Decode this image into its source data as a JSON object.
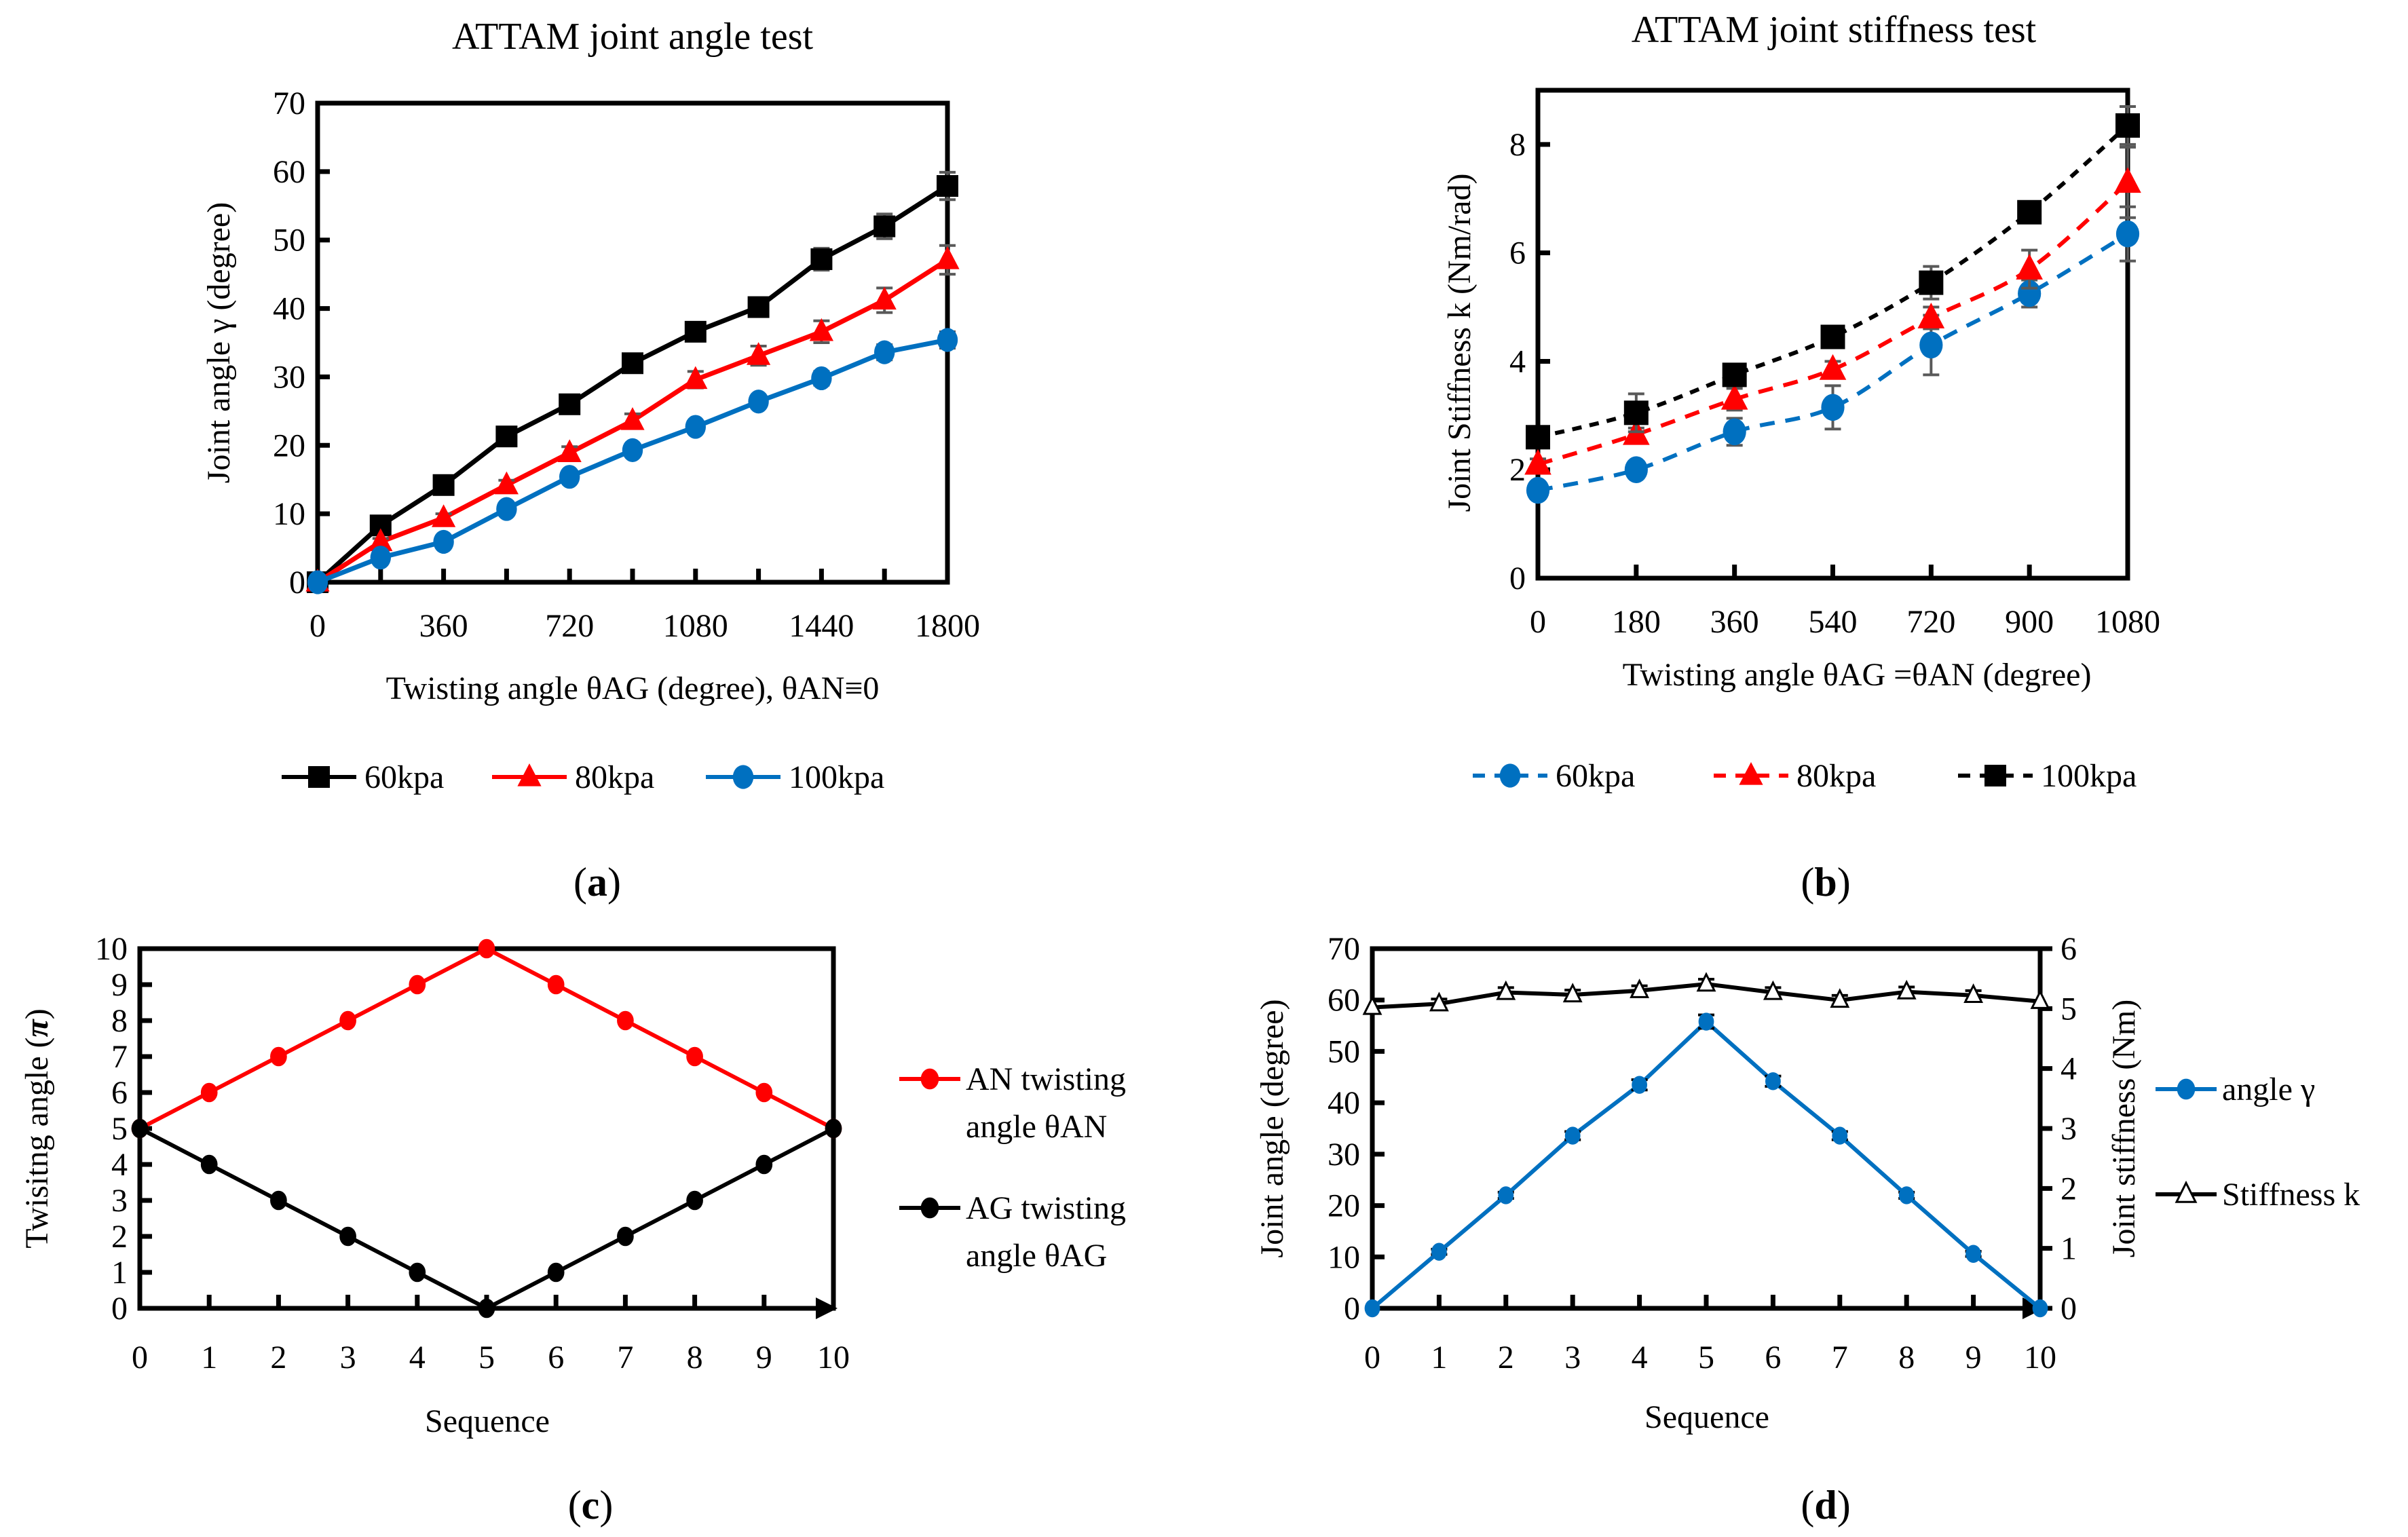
{
  "panels": [
    {
      "id": "a",
      "caption_open": "(",
      "caption_letter": "a",
      "caption_close": ")"
    },
    {
      "id": "b",
      "caption_open": "(",
      "caption_letter": "b",
      "caption_close": ")"
    },
    {
      "id": "c",
      "caption_open": "(",
      "caption_letter": "c",
      "caption_close": ")"
    },
    {
      "id": "d",
      "caption_open": "(",
      "caption_letter": "d",
      "caption_close": ")"
    }
  ],
  "colors": {
    "blue": "#0070C0",
    "red": "#FF0000",
    "black": "#000000",
    "errorbar": "#595959"
  },
  "chart_data": [
    {
      "id": "a",
      "type": "line",
      "title": "ATTAM joint angle test",
      "xlabel": "Twisting angle θAG (degree), θAN≡0",
      "ylabel": "Joint angle γ  (degree)",
      "x": [
        0,
        180,
        360,
        540,
        720,
        900,
        1080,
        1260,
        1440,
        1620,
        1800
      ],
      "xticks": [
        "0",
        "360",
        "720",
        "1080",
        "1440",
        "1800"
      ],
      "xtick_values": [
        0,
        360,
        720,
        1080,
        1440,
        1800
      ],
      "xlim": [
        0,
        1800
      ],
      "ylim": [
        0,
        70
      ],
      "yticks": [
        "0",
        "10",
        "20",
        "30",
        "40",
        "50",
        "60",
        "70"
      ],
      "legend_position": "bottom",
      "series": [
        {
          "name": "60kpa",
          "color": "#000000",
          "marker": "square",
          "dash": false,
          "values": [
            0,
            8.3,
            14.2,
            21.3,
            26.0,
            32.0,
            36.6,
            40.2,
            47.2,
            52.0,
            57.9
          ],
          "errors": [
            0,
            0.6,
            0.7,
            0.7,
            0.7,
            0.7,
            1.0,
            1.3,
            1.6,
            1.8,
            2.0
          ]
        },
        {
          "name": "80kpa",
          "color": "#FF0000",
          "marker": "triangle",
          "dash": false,
          "values": [
            0,
            5.9,
            9.4,
            14.2,
            18.9,
            23.6,
            29.6,
            33.1,
            36.6,
            41.2,
            47.1
          ],
          "errors": [
            0,
            0.5,
            0.6,
            0.7,
            0.9,
            1.0,
            1.2,
            1.4,
            1.6,
            1.8,
            2.1
          ]
        },
        {
          "name": "100kpa",
          "color": "#0070C0",
          "marker": "circle",
          "dash": false,
          "values": [
            0,
            3.6,
            5.9,
            10.7,
            15.4,
            19.3,
            22.7,
            26.4,
            29.8,
            33.6,
            35.4
          ],
          "errors": [
            0,
            0.4,
            0.5,
            0.6,
            0.7,
            0.7,
            0.8,
            0.8,
            1.0,
            1.1,
            1.2
          ]
        }
      ]
    },
    {
      "id": "b",
      "type": "line",
      "title": "ATTAM joint stiffness test",
      "xlabel": "Twisting angle θAG =θAN (degree)",
      "ylabel": "Joint Stiffness k (Nm/rad)",
      "x": [
        0,
        180,
        360,
        540,
        720,
        900,
        1080
      ],
      "xticks": [
        "0",
        "180",
        "360",
        "540",
        "720",
        "900",
        "1080"
      ],
      "xtick_values": [
        0,
        180,
        360,
        540,
        720,
        900,
        1080
      ],
      "xlim": [
        0,
        1080
      ],
      "ylim": [
        0,
        9
      ],
      "yticks": [
        "0",
        "2",
        "4",
        "6",
        "8"
      ],
      "ytick_values": [
        0,
        2,
        4,
        6,
        8
      ],
      "legend_position": "bottom",
      "series": [
        {
          "name": "60kpa",
          "color": "#0070C0",
          "marker": "circle",
          "dash": true,
          "values": [
            1.62,
            2.0,
            2.7,
            3.15,
            4.3,
            5.25,
            6.35
          ],
          "errors": [
            0.1,
            0.12,
            0.25,
            0.4,
            0.55,
            0.25,
            0.5
          ]
        },
        {
          "name": "80kpa",
          "color": "#FF0000",
          "marker": "triangle",
          "dash": true,
          "values": [
            2.1,
            2.65,
            3.3,
            3.85,
            4.8,
            5.7,
            7.3
          ],
          "errors": [
            0.1,
            0.12,
            0.2,
            0.15,
            0.2,
            0.35,
            0.65
          ]
        },
        {
          "name": "100kpa",
          "color": "#000000",
          "marker": "square",
          "dash": true,
          "values": [
            2.6,
            3.05,
            3.75,
            4.45,
            5.45,
            6.75,
            8.35
          ],
          "errors": [
            0.15,
            0.35,
            0.1,
            0.1,
            0.3,
            0.15,
            0.35
          ]
        }
      ]
    },
    {
      "id": "c",
      "type": "line",
      "title": "",
      "xlabel": "Sequence",
      "ylabel": "Twisitng angle (π)",
      "ylabel_main": "Twisitng angle (",
      "ylabel_pi": "π",
      "ylabel_close": ")",
      "x": [
        0,
        1,
        2,
        3,
        4,
        5,
        6,
        7,
        8,
        9,
        10
      ],
      "xticks": [
        "0",
        "1",
        "2",
        "3",
        "4",
        "5",
        "6",
        "7",
        "8",
        "9",
        "10"
      ],
      "xlim": [
        0,
        10
      ],
      "ylim": [
        0,
        10
      ],
      "yticks": [
        "0",
        "1",
        "2",
        "3",
        "4",
        "5",
        "6",
        "7",
        "8",
        "9",
        "10"
      ],
      "legend_position": "right",
      "series": [
        {
          "name": "AN twisting angle θAN",
          "legend_lines": [
            "AN twisting",
            "angle θAN"
          ],
          "color": "#FF0000",
          "marker": "circle",
          "values": [
            5,
            6,
            7,
            8,
            9,
            10,
            9,
            8,
            7,
            6,
            5
          ]
        },
        {
          "name": "AG twisting angle θAG",
          "legend_lines": [
            "AG twisting",
            "angle θAG"
          ],
          "color": "#000000",
          "marker": "circle",
          "values": [
            5,
            4,
            3,
            2,
            1,
            0,
            1,
            2,
            3,
            4,
            5
          ]
        }
      ]
    },
    {
      "id": "d",
      "type": "line",
      "title": "",
      "xlabel": "Sequence",
      "ylabel": "Joint angle (degree)",
      "y2label": "Joint stiffness (Nm)",
      "x": [
        0,
        1,
        2,
        3,
        4,
        5,
        6,
        7,
        8,
        9,
        10
      ],
      "xticks": [
        "0",
        "1",
        "2",
        "3",
        "4",
        "5",
        "6",
        "7",
        "8",
        "9",
        "10"
      ],
      "xlim": [
        0,
        10
      ],
      "ylim": [
        0,
        70
      ],
      "yticks": [
        "0",
        "10",
        "20",
        "30",
        "40",
        "50",
        "60",
        "70"
      ],
      "y2lim": [
        0,
        6
      ],
      "y2ticks": [
        "0",
        "1",
        "2",
        "3",
        "4",
        "5",
        "6"
      ],
      "legend_position": "right",
      "series": [
        {
          "name": "angle γ",
          "axis": "left",
          "color": "#0070C0",
          "marker": "circle",
          "values": [
            0,
            11.0,
            22.0,
            33.6,
            43.5,
            55.8,
            44.2,
            33.6,
            22.0,
            10.6,
            0
          ],
          "errors": [
            0,
            0.5,
            0.6,
            0.8,
            1.0,
            1.3,
            1.0,
            0.8,
            0.6,
            0.5,
            0
          ]
        },
        {
          "name": "Stiffness k",
          "axis": "right",
          "color": "#000000",
          "marker": "open-triangle",
          "values": [
            5.02,
            5.08,
            5.27,
            5.23,
            5.3,
            5.41,
            5.27,
            5.14,
            5.28,
            5.22,
            5.12
          ],
          "errors": [
            0,
            0.08,
            0.08,
            0.08,
            0.08,
            0.08,
            0.08,
            0.08,
            0.08,
            0.08,
            0
          ]
        }
      ]
    }
  ]
}
